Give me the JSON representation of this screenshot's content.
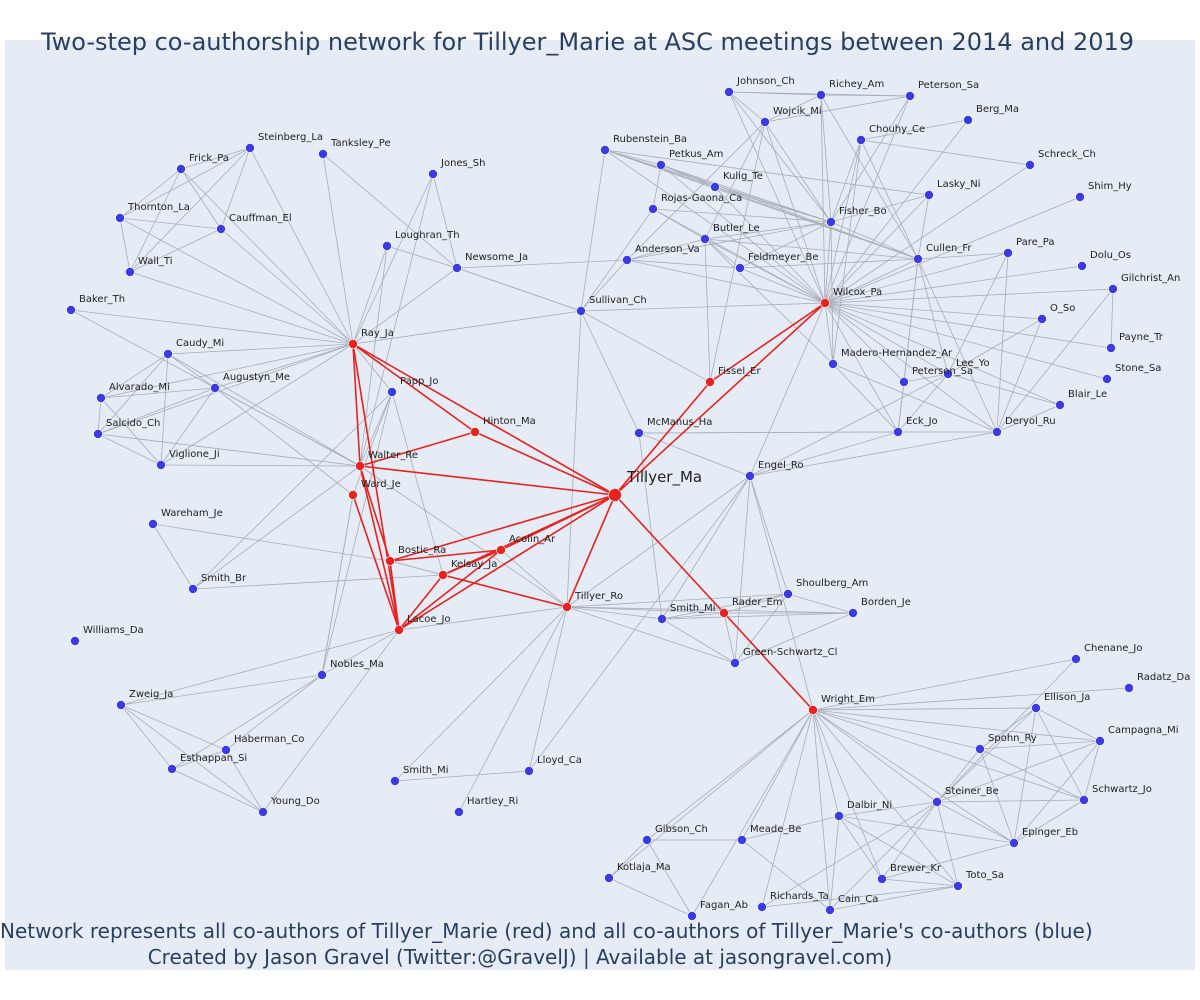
{
  "title": "Two-step co-authorship network for Tillyer_Marie at ASC meetings between 2014 and 2019",
  "caption_line1": "Network represents all co-authors of Tillyer_Marie (red) and all co-authors of Tillyer_Marie's co-authors (blue)",
  "caption_line2": "Created by Jason Gravel (Twitter:@GravelJ) | Available at jasongravel.com)",
  "colors": {
    "background": "#e5ecf6",
    "blue_node": "#3b3be6",
    "red_node": "#e8221e",
    "edge": "#a9adb8",
    "red_edge": "#e8221e"
  },
  "center": "Tillyer_Ma",
  "red_nodes": [
    "Ray_Ja",
    "Hinton_Ma",
    "Walter_Re",
    "Ward_Je",
    "Bostic_Ra",
    "Acolin_Ar",
    "Kelsay_Ja",
    "Lacoe_Jo",
    "Tillyer_Ro",
    "Rader_Em",
    "Wright_Em",
    "Fissel_Er",
    "Wilcox_Pa"
  ],
  "blue_nodes": [
    "Johnson_Ch",
    "Richey_Am",
    "Peterson_Sa",
    "Wojcik_Mi",
    "Berg_Ma",
    "Chouhy_Ce",
    "Schreck_Ch",
    "Rubenstein_Ba",
    "Petkus_Am",
    "Kulig_Te",
    "Lasky_Ni",
    "Shim_Hy",
    "Rojas-Gaona_Ca",
    "Fisher_Bo",
    "Butler_Le",
    "Anderson_Va",
    "Feldmeyer_Be",
    "Cullen_Fr",
    "Pare_Pa",
    "Dolu_Os",
    "Gilchrist_An",
    "O_So",
    "Payne_Tr",
    "Madero-Hernandez_Ar",
    "Lee_Yo",
    "Stone_Sa",
    "Blair_Le",
    "Eck_Jo",
    "Deryol_Ru",
    "McManus_Ha",
    "Engel_Ro",
    "Sullivan_Ch",
    "Newsome_Ja",
    "Jones_Sh",
    "Loughran_Th",
    "Tanksley_Pe",
    "Steinberg_La",
    "Frick_Pa",
    "Thornton_La",
    "Cauffman_El",
    "Wall_Ti",
    "Baker_Th",
    "Caudy_Mi",
    "Augustyn_Me",
    "Alvarado_Mi",
    "Salcido_Ch",
    "Viglione_Ji",
    "Papp_Jo",
    "Wareham_Je",
    "Smith_Br",
    "Williams_Da",
    "Nobles_Ma",
    "Zweig_Ja",
    "Haberman_Co",
    "Esthappan_Si",
    "Young_Do",
    "Smith_Mi",
    "Hartley_Ri",
    "Lloyd_Ca",
    "Shoulberg_Am",
    "Borden_Je",
    "Green-Schwartz_Cl",
    "Chenane_Jo",
    "Radatz_Da",
    "Ellison_Ja",
    "Campagna_Mi",
    "Spohn_Ry",
    "Schwartz_Jo",
    "Steiner_Be",
    "Dalbir_Ni",
    "Epinger_Eb",
    "Meade_Be",
    "Gibson_Ch",
    "Kotlaja_Ma",
    "Brewer_Kr",
    "Toto_Sa",
    "Richards_Ta",
    "Cain_Ca",
    "Fagan_Ab"
  ],
  "network_labels": {
    "Tillyer_Ma": "Tillyer_Ma",
    "Ray_Ja": "Ray_Ja",
    "Hinton_Ma": "Hinton_Ma",
    "Walter_Re": "Walter_Re",
    "Ward_Je": "Ward_Je",
    "Bostic_Ra": "Bostic_Ra",
    "Acolin_Ar": "Acolin_Ar",
    "Kelsay_Ja": "Kelsay_Ja",
    "Lacoe_Jo": "Lacoe_Jo",
    "Tillyer_Ro": "Tillyer_Ro",
    "Rader_Em": "Rader_Em",
    "Wright_Em": "Wright_Em",
    "Fissel_Er": "Fissel_Er",
    "Wilcox_Pa": "Wilcox_Pa",
    "Johnson_Ch": "Johnson_Ch",
    "Richey_Am": "Richey_Am",
    "Peterson_Sa": "Peterson_Sa",
    "Wojcik_Mi": "Wojcik_Mi",
    "Berg_Ma": "Berg_Ma",
    "Chouhy_Ce": "Chouhy_Ce",
    "Schreck_Ch": "Schreck_Ch",
    "Rubenstein_Ba": "Rubenstein_Ba",
    "Petkus_Am": "Petkus_Am",
    "Kulig_Te": "Kulig_Te",
    "Lasky_Ni": "Lasky_Ni",
    "Shim_Hy": "Shim_Hy",
    "Rojas-Gaona_Ca": "Rojas-Gaona_Ca",
    "Fisher_Bo": "Fisher_Bo",
    "Butler_Le": "Butler_Le",
    "Anderson_Va": "Anderson_Va",
    "Feldmeyer_Be": "Feldmeyer_Be",
    "Cullen_Fr": "Cullen_Fr",
    "Pare_Pa": "Pare_Pa",
    "Dolu_Os": "Dolu_Os",
    "Gilchrist_An": "Gilchrist_An",
    "O_So": "O_So",
    "Payne_Tr": "Payne_Tr",
    "Madero-Hernandez_Ar": "Madero-Hernandez_Ar",
    "Lee_Yo": "Lee_Yo",
    "Peterson_Sa2": "Peterson_Sa",
    "Stone_Sa": "Stone_Sa",
    "Blair_Le": "Blair_Le",
    "Eck_Jo": "Eck_Jo",
    "Deryol_Ru": "Deryol_Ru",
    "McManus_Ha": "McManus_Ha",
    "Engel_Ro": "Engel_Ro",
    "Sullivan_Ch": "Sullivan_Ch",
    "Newsome_Ja": "Newsome_Ja",
    "Jones_Sh": "Jones_Sh",
    "Loughran_Th": "Loughran_Th",
    "Tanksley_Pe": "Tanksley_Pe",
    "Steinberg_La": "Steinberg_La",
    "Frick_Pa": "Frick_Pa",
    "Thornton_La": "Thornton_La",
    "Cauffman_El": "Cauffman_El",
    "Wall_Ti": "Wall_Ti",
    "Baker_Th": "Baker_Th",
    "Caudy_Mi": "Caudy_Mi",
    "Augustyn_Me": "Augustyn_Me",
    "Alvarado_Mi": "Alvarado_Mi",
    "Salcido_Ch": "Salcido_Ch",
    "Viglione_Ji": "Viglione_Ji",
    "Papp_Jo": "Papp_Jo",
    "Wareham_Je": "Wareham_Je",
    "Smith_Br": "Smith_Br",
    "Williams_Da": "Williams_Da",
    "Nobles_Ma": "Nobles_Ma",
    "Zweig_Ja": "Zweig_Ja",
    "Haberman_Co": "Haberman_Co",
    "Esthappan_Si": "Esthappan_Si",
    "Young_Do": "Young_Do",
    "Smith_Mi": "Smith_Mi",
    "Smith_Mi2": "Smith_Mi",
    "Hartley_Ri": "Hartley_Ri",
    "Lloyd_Ca": "Lloyd_Ca",
    "Shoulberg_Am": "Shoulberg_Am",
    "Borden_Je": "Borden_Je",
    "Green-Schwartz_Cl": "Green-Schwartz_Cl",
    "Chenane_Jo": "Chenane_Jo",
    "Radatz_Da": "Radatz_Da",
    "Ellison_Ja": "Ellison_Ja",
    "Campagna_Mi": "Campagna_Mi",
    "Spohn_Ry": "Spohn_Ry",
    "Schwartz_Jo": "Schwartz_Jo",
    "Steiner_Be": "Steiner_Be",
    "Dalbir_Ni": "Dalbir_Ni",
    "Epinger_Eb": "Epinger_Eb",
    "Meade_Be": "Meade_Be",
    "Gibson_Ch": "Gibson_Ch",
    "Kotlaja_Ma": "Kotlaja_Ma",
    "Brewer_Kr": "Brewer_Kr",
    "Toto_Sa": "Toto_Sa",
    "Richards_Ta": "Richards_Ta",
    "Cain_Ca": "Cain_Ca",
    "Fagan_Ab": "Fagan_Ab"
  }
}
